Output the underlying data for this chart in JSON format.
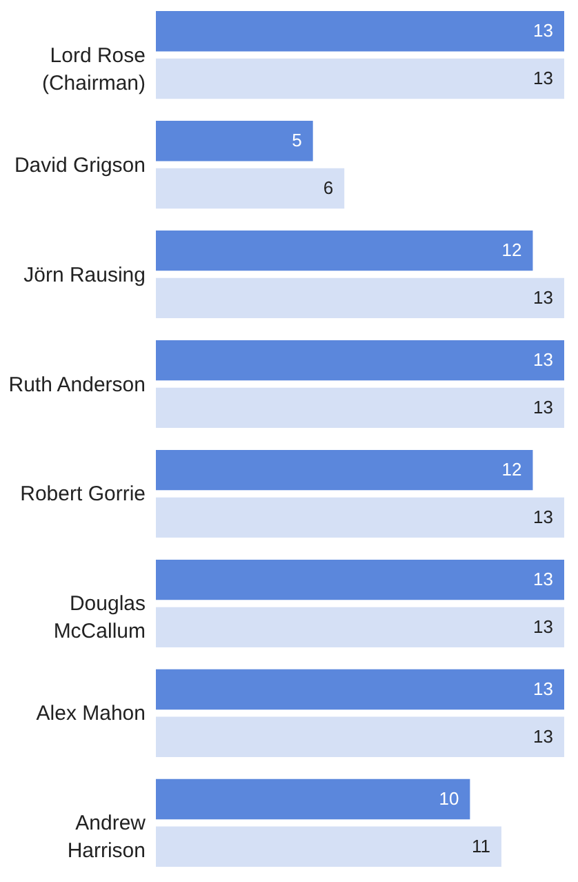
{
  "chart_data": {
    "type": "bar",
    "orientation": "horizontal",
    "data_labels": true,
    "legend": false,
    "grid": false,
    "categories": [
      "Lord Rose (Chairman)",
      "David Grigson",
      "Jörn Rausing",
      "Ruth Anderson",
      "Robert Gorrie",
      "Douglas McCallum",
      "Alex Mahon",
      "Andrew Harrison"
    ],
    "series": [
      {
        "color": "#5b87dc",
        "values": [
          13,
          5,
          12,
          13,
          12,
          13,
          13,
          10
        ]
      },
      {
        "color": "#d5e0f5",
        "values": [
          13,
          6,
          13,
          13,
          13,
          13,
          13,
          11
        ]
      }
    ]
  }
}
